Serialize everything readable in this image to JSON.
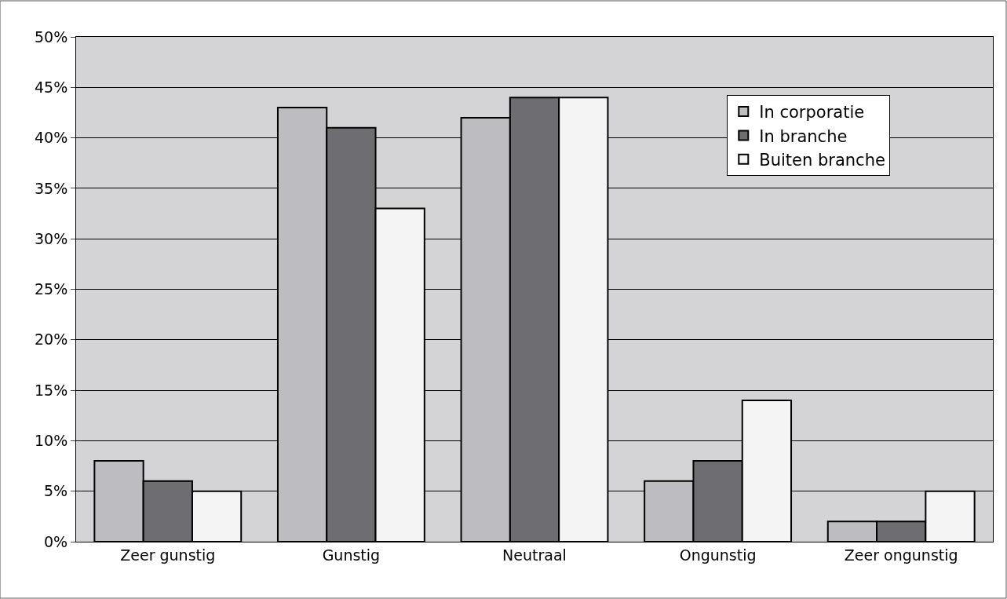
{
  "chart_data": {
    "type": "bar",
    "categories": [
      "Zeer gunstig",
      "Gunstig",
      "Neutraal",
      "Ongunstig",
      "Zeer ongunstig"
    ],
    "series": [
      {
        "name": "In corporatie",
        "color": "#bdbdc1",
        "values": [
          8,
          43,
          42,
          6,
          2
        ]
      },
      {
        "name": "In branche",
        "color": "#6e6e72",
        "values": [
          6,
          41,
          44,
          8,
          2
        ]
      },
      {
        "name": "Buiten branche",
        "color": "#f4f4f4",
        "values": [
          5,
          33,
          44,
          14,
          5
        ]
      }
    ],
    "ylim": [
      0,
      50
    ],
    "yticks": [
      {
        "value": 0,
        "label": "0%"
      },
      {
        "value": 5,
        "label": "5%"
      },
      {
        "value": 10,
        "label": "10%"
      },
      {
        "value": 15,
        "label": "15%"
      },
      {
        "value": 20,
        "label": "20%"
      },
      {
        "value": 25,
        "label": "25%"
      },
      {
        "value": 30,
        "label": "30%"
      },
      {
        "value": 35,
        "label": "35%"
      },
      {
        "value": 40,
        "label": "40%"
      },
      {
        "value": 45,
        "label": "45%"
      },
      {
        "value": 50,
        "label": "50%"
      }
    ],
    "grid": "y",
    "legend": "top right"
  }
}
